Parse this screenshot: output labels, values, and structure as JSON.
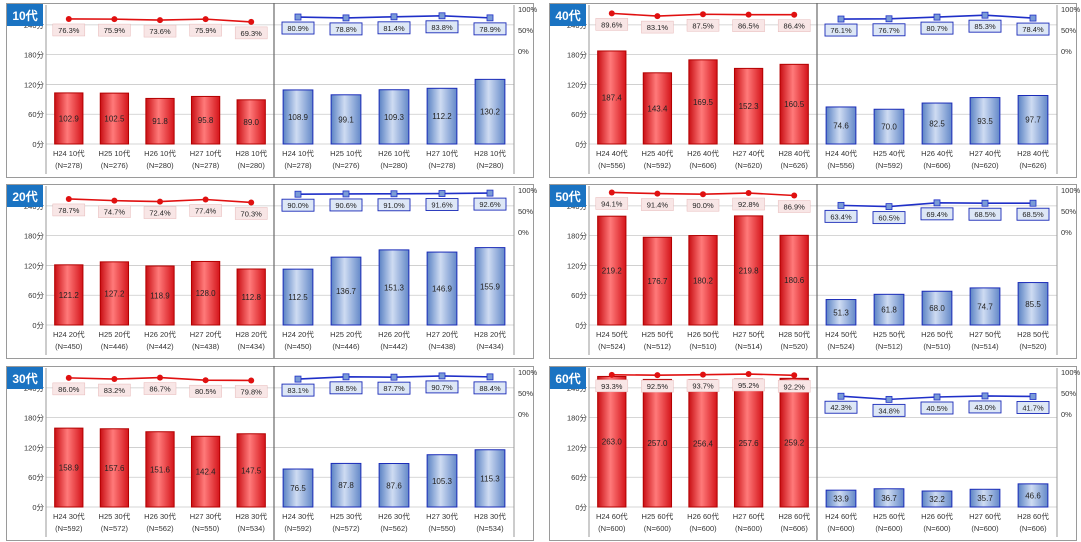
{
  "colors": {
    "red_bar": "#e8242a",
    "red_bar_light": "#ff9a9a",
    "red_line": "#e01010",
    "blue_bar": "#6f95cf",
    "blue_bar_light": "#c3d5f1",
    "blue_line": "#1f2fc8",
    "badge": "#1a73c2",
    "grid": "#c9c9c9",
    "red_label_bg": "#f8e6e6",
    "blue_label_bg": "#dde7f6"
  },
  "chart_data": [
    {
      "type": "bar",
      "badge": "10代",
      "left_axis_ticks": [
        "240分",
        "180分",
        "120分",
        "60分",
        "0分"
      ],
      "right_axis_ticks": [
        "100%",
        "50%",
        "0%"
      ],
      "ylim": [
        0,
        280
      ],
      "pct_lim": [
        0,
        100
      ],
      "categories": [
        {
          "line1": "H24 10代",
          "line2": "(N=278)"
        },
        {
          "line1": "H25 10代",
          "line2": "(N=276)"
        },
        {
          "line1": "H26 10代",
          "line2": "(N=280)"
        },
        {
          "line1": "H27 10代",
          "line2": "(N=278)"
        },
        {
          "line1": "H28 10代",
          "line2": "(N=280)"
        }
      ],
      "series": [
        {
          "values": [
            102.9,
            102.5,
            91.8,
            95.8,
            89.0
          ],
          "labels": [
            "102.9",
            "102.5",
            "91.8",
            "95.8",
            "89.0"
          ]
        },
        {
          "values": [
            108.9,
            99.1,
            109.3,
            112.2,
            130.2
          ],
          "labels": [
            "108.9",
            "99.1",
            "109.3",
            "112.2",
            "130.2"
          ]
        }
      ],
      "line_series": [
        {
          "values": [
            76.3,
            75.9,
            73.6,
            75.9,
            69.3
          ],
          "labels": [
            "76.3%",
            "75.9%",
            "73.6%",
            "75.9%",
            "69.3%"
          ]
        },
        {
          "values": [
            80.9,
            78.8,
            81.4,
            83.8,
            78.9
          ],
          "labels": [
            "80.9%",
            "78.8%",
            "81.4%",
            "83.8%",
            "78.9%"
          ]
        }
      ]
    },
    {
      "type": "bar",
      "badge": "40代",
      "left_axis_ticks": [
        "240分",
        "180分",
        "120分",
        "60分",
        "0分"
      ],
      "right_axis_ticks": [
        "100%",
        "50%",
        "0%"
      ],
      "ylim": [
        0,
        280
      ],
      "pct_lim": [
        0,
        100
      ],
      "categories": [
        {
          "line1": "H24 40代",
          "line2": "(N=556)"
        },
        {
          "line1": "H25 40代",
          "line2": "(N=592)"
        },
        {
          "line1": "H26 40代",
          "line2": "(N=606)"
        },
        {
          "line1": "H27 40代",
          "line2": "(N=620)"
        },
        {
          "line1": "H28 40代",
          "line2": "(N=626)"
        }
      ],
      "series": [
        {
          "values": [
            187.4,
            143.4,
            169.5,
            152.3,
            160.5
          ],
          "labels": [
            "187.4",
            "143.4",
            "169.5",
            "152.3",
            "160.5"
          ]
        },
        {
          "values": [
            74.6,
            70.0,
            82.5,
            93.5,
            97.7
          ],
          "labels": [
            "74.6",
            "70.0",
            "82.5",
            "93.5",
            "97.7"
          ]
        }
      ],
      "line_series": [
        {
          "values": [
            89.6,
            83.1,
            87.5,
            86.5,
            86.4
          ],
          "labels": [
            "89.6%",
            "83.1%",
            "87.5%",
            "86.5%",
            "86.4%"
          ]
        },
        {
          "values": [
            76.1,
            76.7,
            80.7,
            85.3,
            78.4
          ],
          "labels": [
            "76.1%",
            "76.7%",
            "80.7%",
            "85.3%",
            "78.4%"
          ]
        }
      ]
    },
    {
      "type": "bar",
      "badge": "20代",
      "left_axis_ticks": [
        "240分",
        "180分",
        "120分",
        "60分",
        "0分"
      ],
      "right_axis_ticks": [
        "100%",
        "50%",
        "0%"
      ],
      "ylim": [
        0,
        280
      ],
      "pct_lim": [
        0,
        100
      ],
      "categories": [
        {
          "line1": "H24 20代",
          "line2": "(N=450)"
        },
        {
          "line1": "H25 20代",
          "line2": "(N=446)"
        },
        {
          "line1": "H26 20代",
          "line2": "(N=442)"
        },
        {
          "line1": "H27 20代",
          "line2": "(N=438)"
        },
        {
          "line1": "H28 20代",
          "line2": "(N=434)"
        }
      ],
      "series": [
        {
          "values": [
            121.2,
            127.2,
            118.9,
            128.0,
            112.8
          ],
          "labels": [
            "121.2",
            "127.2",
            "118.9",
            "128.0",
            "112.8"
          ]
        },
        {
          "values": [
            112.5,
            136.7,
            151.3,
            146.9,
            155.9
          ],
          "labels": [
            "112.5",
            "136.7",
            "151.3",
            "146.9",
            "155.9"
          ]
        }
      ],
      "line_series": [
        {
          "values": [
            78.7,
            74.7,
            72.4,
            77.4,
            70.3
          ],
          "labels": [
            "78.7%",
            "74.7%",
            "72.4%",
            "77.4%",
            "70.3%"
          ]
        },
        {
          "values": [
            90.0,
            90.6,
            91.0,
            91.6,
            92.6
          ],
          "labels": [
            "90.0%",
            "90.6%",
            "91.0%",
            "91.6%",
            "92.6%"
          ]
        }
      ]
    },
    {
      "type": "bar",
      "badge": "50代",
      "left_axis_ticks": [
        "240分",
        "180分",
        "120分",
        "60分",
        "0分"
      ],
      "right_axis_ticks": [
        "100%",
        "50%",
        "0%"
      ],
      "ylim": [
        0,
        280
      ],
      "pct_lim": [
        0,
        100
      ],
      "categories": [
        {
          "line1": "H24 50代",
          "line2": "(N=524)"
        },
        {
          "line1": "H25 50代",
          "line2": "(N=512)"
        },
        {
          "line1": "H26 50代",
          "line2": "(N=510)"
        },
        {
          "line1": "H27 50代",
          "line2": "(N=514)"
        },
        {
          "line1": "H28 50代",
          "line2": "(N=520)"
        }
      ],
      "series": [
        {
          "values": [
            219.2,
            176.7,
            180.2,
            219.8,
            180.6
          ],
          "labels": [
            "219.2",
            "176.7",
            "180.2",
            "219.8",
            "180.6"
          ]
        },
        {
          "values": [
            51.3,
            61.8,
            68.0,
            74.7,
            85.5
          ],
          "labels": [
            "51.3",
            "61.8",
            "68.0",
            "74.7",
            "85.5"
          ]
        }
      ],
      "line_series": [
        {
          "values": [
            94.1,
            91.4,
            90.0,
            92.8,
            86.9
          ],
          "labels": [
            "94.1%",
            "91.4%",
            "90.0%",
            "92.8%",
            "86.9%"
          ]
        },
        {
          "values": [
            63.4,
            60.5,
            69.4,
            68.5,
            68.5
          ],
          "labels": [
            "63.4%",
            "60.5%",
            "69.4%",
            "68.5%",
            "68.5%"
          ]
        }
      ]
    },
    {
      "type": "bar",
      "badge": "30代",
      "left_axis_ticks": [
        "240分",
        "180分",
        "120分",
        "60分",
        "0分"
      ],
      "right_axis_ticks": [
        "100%",
        "50%",
        "0%"
      ],
      "ylim": [
        0,
        280
      ],
      "pct_lim": [
        0,
        100
      ],
      "categories": [
        {
          "line1": "H24 30代",
          "line2": "(N=592)"
        },
        {
          "line1": "H25 30代",
          "line2": "(N=572)"
        },
        {
          "line1": "H26 30代",
          "line2": "(N=562)"
        },
        {
          "line1": "H27 30代",
          "line2": "(N=550)"
        },
        {
          "line1": "H28 30代",
          "line2": "(N=534)"
        }
      ],
      "series": [
        {
          "values": [
            158.9,
            157.6,
            151.6,
            142.4,
            147.5
          ],
          "labels": [
            "158.9",
            "157.6",
            "151.6",
            "142.4",
            "147.5"
          ]
        },
        {
          "values": [
            76.5,
            87.8,
            87.6,
            105.3,
            115.3
          ],
          "labels": [
            "76.5",
            "87.8",
            "87.6",
            "105.3",
            "115.3"
          ]
        }
      ],
      "line_series": [
        {
          "values": [
            86.0,
            83.2,
            86.7,
            80.5,
            79.8
          ],
          "labels": [
            "86.0%",
            "83.2%",
            "86.7%",
            "80.5%",
            "79.8%"
          ]
        },
        {
          "values": [
            83.1,
            88.5,
            87.7,
            90.7,
            88.4
          ],
          "labels": [
            "83.1%",
            "88.5%",
            "87.7%",
            "90.7%",
            "88.4%"
          ]
        }
      ]
    },
    {
      "type": "bar",
      "badge": "60代",
      "left_axis_ticks": [
        "240分",
        "180分",
        "120分",
        "60分",
        "0分"
      ],
      "right_axis_ticks": [
        "100%",
        "50%",
        "0%"
      ],
      "ylim": [
        0,
        280
      ],
      "pct_lim": [
        0,
        100
      ],
      "categories": [
        {
          "line1": "H24 60代",
          "line2": "(N=600)"
        },
        {
          "line1": "H25 60代",
          "line2": "(N=600)"
        },
        {
          "line1": "H26 60代",
          "line2": "(N=600)"
        },
        {
          "line1": "H27 60代",
          "line2": "(N=600)"
        },
        {
          "line1": "H28 60代",
          "line2": "(N=606)"
        }
      ],
      "series": [
        {
          "values": [
            263.0,
            257.0,
            256.4,
            257.6,
            259.2
          ],
          "labels": [
            "263.0",
            "257.0",
            "256.4",
            "257.6",
            "259.2"
          ]
        },
        {
          "values": [
            33.9,
            36.7,
            32.2,
            35.7,
            46.6
          ],
          "labels": [
            "33.9",
            "36.7",
            "32.2",
            "35.7",
            "46.6"
          ]
        }
      ],
      "line_series": [
        {
          "values": [
            93.3,
            92.5,
            93.7,
            95.2,
            92.2
          ],
          "labels": [
            "93.3%",
            "92.5%",
            "93.7%",
            "95.2%",
            "92.2%"
          ]
        },
        {
          "values": [
            42.3,
            34.8,
            40.5,
            43.0,
            41.7
          ],
          "labels": [
            "42.3%",
            "34.8%",
            "40.5%",
            "43.0%",
            "41.7%"
          ]
        }
      ]
    }
  ]
}
